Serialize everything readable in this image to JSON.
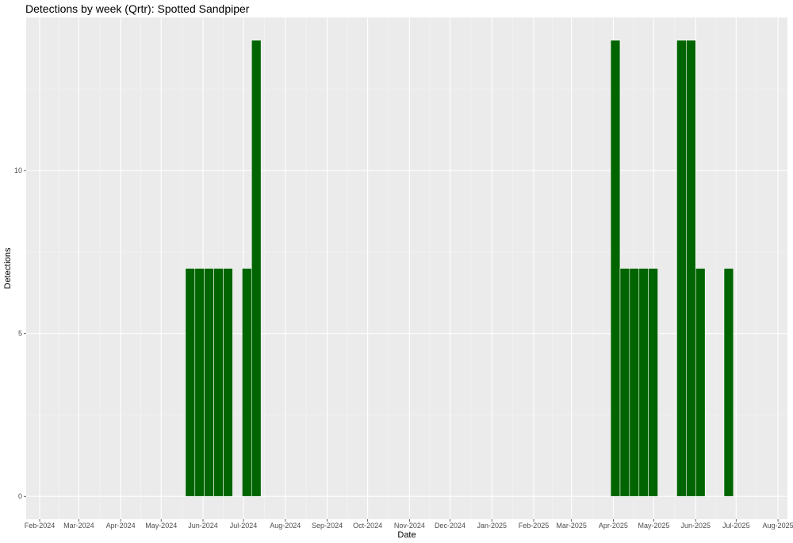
{
  "chart_data": {
    "type": "bar",
    "title": "Detections by week (Qrtr): Spotted Sandpiper",
    "xlabel": "Date",
    "ylabel": "Detections",
    "xlim": [
      "2024-01-22",
      "2025-08-08"
    ],
    "ylim": [
      -0.7,
      14.7
    ],
    "grid": true,
    "bar_color": "#006400",
    "panel_color": "#ebebeb",
    "bar_width_days": 7,
    "x_ticks": [
      {
        "date": "2024-02-01",
        "label": "Feb-2024"
      },
      {
        "date": "2024-03-01",
        "label": "Mar-2024"
      },
      {
        "date": "2024-04-01",
        "label": "Apr-2024"
      },
      {
        "date": "2024-05-01",
        "label": "May-2024"
      },
      {
        "date": "2024-06-01",
        "label": "Jun-2024"
      },
      {
        "date": "2024-07-01",
        "label": "Jul-2024"
      },
      {
        "date": "2024-08-01",
        "label": "Aug-2024"
      },
      {
        "date": "2024-09-01",
        "label": "Sep-2024"
      },
      {
        "date": "2024-10-01",
        "label": "Oct-2024"
      },
      {
        "date": "2024-11-01",
        "label": "Nov-2024"
      },
      {
        "date": "2024-12-01",
        "label": "Dec-2024"
      },
      {
        "date": "2025-01-01",
        "label": "Jan-2025"
      },
      {
        "date": "2025-02-01",
        "label": "Feb-2025"
      },
      {
        "date": "2025-03-01",
        "label": "Mar-2025"
      },
      {
        "date": "2025-04-01",
        "label": "Apr-2025"
      },
      {
        "date": "2025-05-01",
        "label": "May-2025"
      },
      {
        "date": "2025-06-01",
        "label": "Jun-2025"
      },
      {
        "date": "2025-07-01",
        "label": "Jul-2025"
      },
      {
        "date": "2025-08-01",
        "label": "Aug-2025"
      }
    ],
    "y_ticks": [
      {
        "value": 0,
        "label": "0"
      },
      {
        "value": 5,
        "label": "5"
      },
      {
        "value": 10,
        "label": "10"
      }
    ],
    "data": [
      {
        "week_start": "2024-05-19",
        "value": 7
      },
      {
        "week_start": "2024-05-26",
        "value": 7
      },
      {
        "week_start": "2024-06-02",
        "value": 7
      },
      {
        "week_start": "2024-06-09",
        "value": 7
      },
      {
        "week_start": "2024-06-16",
        "value": 7
      },
      {
        "week_start": "2024-06-30",
        "value": 7
      },
      {
        "week_start": "2024-07-07",
        "value": 14
      },
      {
        "week_start": "2025-03-30",
        "value": 14
      },
      {
        "week_start": "2025-04-06",
        "value": 7
      },
      {
        "week_start": "2025-04-13",
        "value": 7
      },
      {
        "week_start": "2025-04-20",
        "value": 7
      },
      {
        "week_start": "2025-04-27",
        "value": 7
      },
      {
        "week_start": "2025-05-18",
        "value": 14
      },
      {
        "week_start": "2025-05-25",
        "value": 14
      },
      {
        "week_start": "2025-06-01",
        "value": 7
      },
      {
        "week_start": "2025-06-22",
        "value": 7
      }
    ]
  }
}
